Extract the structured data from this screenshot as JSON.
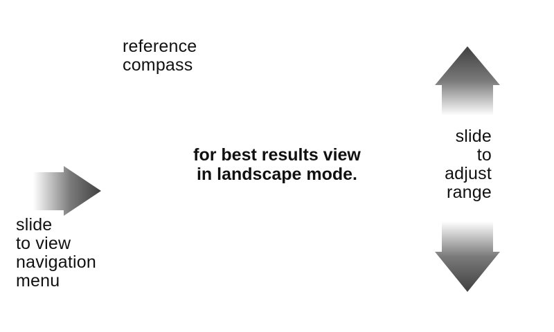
{
  "compass": {
    "lines": [
      "reference",
      "compass"
    ]
  },
  "navigation_hint": {
    "lines": [
      "slide",
      "to view",
      "navigation",
      "menu"
    ],
    "icon": "arrow-right-icon"
  },
  "range_hint": {
    "lines": [
      "slide",
      "to",
      "adjust",
      "range"
    ],
    "icons": [
      "arrow-up-icon",
      "arrow-down-icon"
    ]
  },
  "landscape_message": {
    "lines": [
      "for best results view",
      "in landscape mode."
    ]
  },
  "colors": {
    "background": "#ffffff",
    "text": "#111111",
    "arrow_dark": "#404040"
  }
}
